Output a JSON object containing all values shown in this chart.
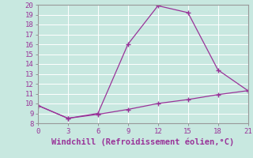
{
  "x": [
    0,
    3,
    6,
    9,
    12,
    15,
    18,
    21
  ],
  "y_upper": [
    9.8,
    8.5,
    9.0,
    16.0,
    19.9,
    19.2,
    13.4,
    11.3
  ],
  "y_lower": [
    9.8,
    8.5,
    8.9,
    9.4,
    10.0,
    10.4,
    10.9,
    11.3
  ],
  "line_color": "#993399",
  "bg_color": "#c8e8e0",
  "grid_color": "#b0d8d0",
  "xlabel": "Windchill (Refroidissement éolien,°C)",
  "xlim": [
    0,
    21
  ],
  "ylim": [
    8,
    20
  ],
  "xticks": [
    0,
    3,
    6,
    9,
    12,
    15,
    18,
    21
  ],
  "yticks": [
    8,
    9,
    10,
    11,
    12,
    13,
    14,
    15,
    16,
    17,
    18,
    19,
    20
  ],
  "tick_fontsize": 6.5,
  "xlabel_fontsize": 7.5
}
